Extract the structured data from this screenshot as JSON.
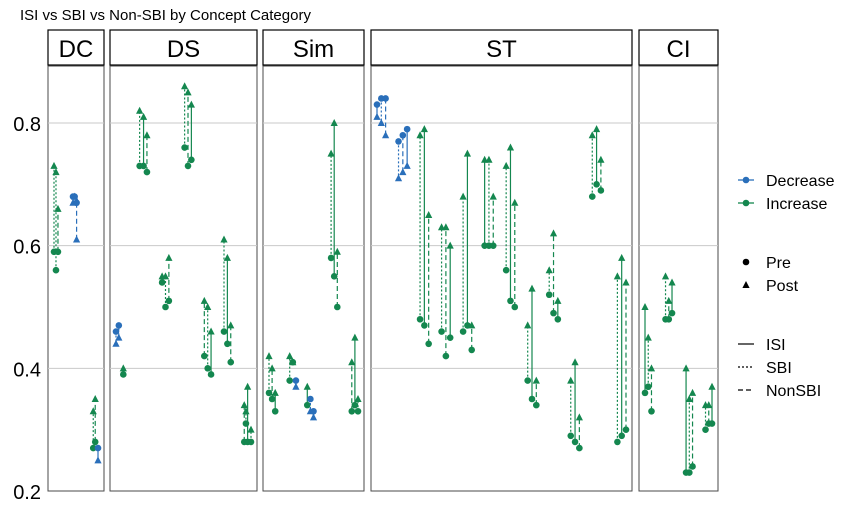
{
  "chart_data": {
    "type": "scatter",
    "title": "ISI vs SBI vs Non-SBI by Concept Category",
    "xlabel": "",
    "ylabel": "",
    "ylim": [
      0.2,
      0.9
    ],
    "yticks": [
      0.2,
      0.4,
      0.6,
      0.8
    ],
    "grid": true,
    "legend_placement": "right",
    "colors": {
      "Decrease": "#2a6fba",
      "Increase": "#14874f"
    },
    "legend": {
      "direction": {
        "entries": [
          "Decrease",
          "Increase"
        ]
      },
      "time": {
        "entries": [
          "Pre",
          "Post"
        ]
      },
      "method": {
        "entries": [
          "ISI",
          "SBI",
          "NonSBI"
        ]
      }
    },
    "facets": [
      {
        "name": "DC",
        "points": 4,
        "segments": [
          {
            "x": 1.1,
            "pre": 0.59,
            "post": 0.73,
            "method": "SBI",
            "direction": "Increase"
          },
          {
            "x": 1.6,
            "pre": 0.56,
            "post": 0.72,
            "method": "SBI",
            "direction": "Increase"
          },
          {
            "x": 2.1,
            "pre": 0.59,
            "post": 0.66,
            "method": "NonSBI",
            "direction": "Increase"
          },
          {
            "x": 5.9,
            "pre": 0.68,
            "post": 0.67,
            "method": "ISI",
            "direction": "Decrease"
          },
          {
            "x": 6.3,
            "pre": 0.68,
            "post": 0.68,
            "method": "SBI",
            "direction": "Decrease"
          },
          {
            "x": 6.8,
            "pre": 0.67,
            "post": 0.61,
            "method": "NonSBI",
            "direction": "Decrease"
          },
          {
            "x": 11.0,
            "pre": 0.27,
            "post": 0.33,
            "method": "SBI",
            "direction": "Increase"
          },
          {
            "x": 11.5,
            "pre": 0.28,
            "post": 0.35,
            "method": "NonSBI",
            "direction": "Increase"
          },
          {
            "x": 12.2,
            "pre": 0.27,
            "post": 0.25,
            "method": "ISI",
            "direction": "Decrease"
          }
        ]
      },
      {
        "name": "DS",
        "points": 6,
        "segments": [
          {
            "x": 1.2,
            "pre": 0.46,
            "post": 0.44,
            "method": "SBI",
            "direction": "Decrease"
          },
          {
            "x": 1.7,
            "pre": 0.47,
            "post": 0.45,
            "method": "NonSBI",
            "direction": "Decrease"
          },
          {
            "x": 2.5,
            "pre": 0.39,
            "post": 0.4,
            "method": "ISI",
            "direction": "Increase"
          },
          {
            "x": 5.4,
            "pre": 0.73,
            "post": 0.82,
            "method": "SBI",
            "direction": "Increase"
          },
          {
            "x": 6.1,
            "pre": 0.73,
            "post": 0.81,
            "method": "ISI",
            "direction": "Increase"
          },
          {
            "x": 6.7,
            "pre": 0.72,
            "post": 0.78,
            "method": "NonSBI",
            "direction": "Increase"
          },
          {
            "x": 9.4,
            "pre": 0.54,
            "post": 0.55,
            "method": "ISI",
            "direction": "Increase"
          },
          {
            "x": 10.0,
            "pre": 0.5,
            "post": 0.55,
            "method": "SBI",
            "direction": "Increase"
          },
          {
            "x": 10.6,
            "pre": 0.51,
            "post": 0.58,
            "method": "NonSBI",
            "direction": "Increase"
          },
          {
            "x": 13.4,
            "pre": 0.76,
            "post": 0.86,
            "method": "SBI",
            "direction": "Increase"
          },
          {
            "x": 14.0,
            "pre": 0.73,
            "post": 0.85,
            "method": "NonSBI",
            "direction": "Increase"
          },
          {
            "x": 14.6,
            "pre": 0.74,
            "post": 0.83,
            "method": "ISI",
            "direction": "Increase"
          },
          {
            "x": 16.9,
            "pre": 0.42,
            "post": 0.51,
            "method": "NonSBI",
            "direction": "Increase"
          },
          {
            "x": 17.5,
            "pre": 0.4,
            "post": 0.5,
            "method": "SBI",
            "direction": "Increase"
          },
          {
            "x": 18.1,
            "pre": 0.39,
            "post": 0.46,
            "method": "ISI",
            "direction": "Increase"
          },
          {
            "x": 20.4,
            "pre": 0.46,
            "post": 0.61,
            "method": "SBI",
            "direction": "Increase"
          },
          {
            "x": 21.0,
            "pre": 0.44,
            "post": 0.58,
            "method": "ISI",
            "direction": "Increase"
          },
          {
            "x": 21.6,
            "pre": 0.41,
            "post": 0.47,
            "method": "NonSBI",
            "direction": "Increase"
          },
          {
            "x": 24.0,
            "pre": 0.28,
            "post": 0.34,
            "method": "NonSBI",
            "direction": "Increase"
          },
          {
            "x": 24.6,
            "pre": 0.28,
            "post": 0.37,
            "method": "ISI",
            "direction": "Increase"
          },
          {
            "x": 25.2,
            "pre": 0.28,
            "post": 0.3,
            "method": "SBI",
            "direction": "Increase"
          },
          {
            "x": 24.3,
            "pre": 0.31,
            "post": 0.33,
            "method": "SBI",
            "direction": "Increase"
          }
        ]
      },
      {
        "name": "Sim",
        "points": 5,
        "segments": [
          {
            "x": 1.0,
            "pre": 0.36,
            "post": 0.42,
            "method": "SBI",
            "direction": "Increase"
          },
          {
            "x": 1.6,
            "pre": 0.35,
            "post": 0.4,
            "method": "NonSBI",
            "direction": "Increase"
          },
          {
            "x": 2.2,
            "pre": 0.33,
            "post": 0.36,
            "method": "ISI",
            "direction": "Increase"
          },
          {
            "x": 5.0,
            "pre": 0.38,
            "post": 0.42,
            "method": "SBI",
            "direction": "Increase"
          },
          {
            "x": 5.6,
            "pre": 0.41,
            "post": 0.41,
            "method": "NonSBI",
            "direction": "Increase"
          },
          {
            "x": 6.2,
            "pre": 0.38,
            "post": 0.37,
            "method": "ISI",
            "direction": "Decrease"
          },
          {
            "x": 8.4,
            "pre": 0.34,
            "post": 0.37,
            "method": "ISI",
            "direction": "Increase"
          },
          {
            "x": 9.0,
            "pre": 0.35,
            "post": 0.33,
            "method": "SBI",
            "direction": "Decrease"
          },
          {
            "x": 9.6,
            "pre": 0.33,
            "post": 0.32,
            "method": "NonSBI",
            "direction": "Decrease"
          },
          {
            "x": 13.0,
            "pre": 0.58,
            "post": 0.75,
            "method": "SBI",
            "direction": "Increase"
          },
          {
            "x": 13.6,
            "pre": 0.55,
            "post": 0.8,
            "method": "ISI",
            "direction": "Increase"
          },
          {
            "x": 14.2,
            "pre": 0.5,
            "post": 0.59,
            "method": "NonSBI",
            "direction": "Increase"
          },
          {
            "x": 17.0,
            "pre": 0.33,
            "post": 0.41,
            "method": "NonSBI",
            "direction": "Increase"
          },
          {
            "x": 17.6,
            "pre": 0.34,
            "post": 0.45,
            "method": "ISI",
            "direction": "Increase"
          },
          {
            "x": 18.2,
            "pre": 0.33,
            "post": 0.35,
            "method": "SBI",
            "direction": "Increase"
          }
        ]
      },
      {
        "name": "ST",
        "points": 14,
        "segments": [
          {
            "x": 1.0,
            "pre": 0.83,
            "post": 0.81,
            "method": "ISI",
            "direction": "Decrease"
          },
          {
            "x": 1.6,
            "pre": 0.84,
            "post": 0.8,
            "method": "SBI",
            "direction": "Decrease"
          },
          {
            "x": 2.2,
            "pre": 0.84,
            "post": 0.78,
            "method": "NonSBI",
            "direction": "Decrease"
          },
          {
            "x": 4.0,
            "pre": 0.77,
            "post": 0.71,
            "method": "SBI",
            "direction": "Decrease"
          },
          {
            "x": 4.6,
            "pre": 0.78,
            "post": 0.72,
            "method": "NonSBI",
            "direction": "Decrease"
          },
          {
            "x": 5.2,
            "pre": 0.79,
            "post": 0.73,
            "method": "ISI",
            "direction": "Decrease"
          },
          {
            "x": 7.0,
            "pre": 0.48,
            "post": 0.78,
            "method": "SBI",
            "direction": "Increase"
          },
          {
            "x": 7.6,
            "pre": 0.47,
            "post": 0.79,
            "method": "ISI",
            "direction": "Increase"
          },
          {
            "x": 8.2,
            "pre": 0.44,
            "post": 0.65,
            "method": "NonSBI",
            "direction": "Increase"
          },
          {
            "x": 10.0,
            "pre": 0.46,
            "post": 0.63,
            "method": "SBI",
            "direction": "Increase"
          },
          {
            "x": 10.6,
            "pre": 0.42,
            "post": 0.63,
            "method": "NonSBI",
            "direction": "Increase"
          },
          {
            "x": 11.2,
            "pre": 0.45,
            "post": 0.6,
            "method": "ISI",
            "direction": "Increase"
          },
          {
            "x": 13.0,
            "pre": 0.46,
            "post": 0.68,
            "method": "SBI",
            "direction": "Increase"
          },
          {
            "x": 13.6,
            "pre": 0.47,
            "post": 0.75,
            "method": "ISI",
            "direction": "Increase"
          },
          {
            "x": 14.2,
            "pre": 0.43,
            "post": 0.47,
            "method": "NonSBI",
            "direction": "Increase"
          },
          {
            "x": 16.0,
            "pre": 0.6,
            "post": 0.74,
            "method": "ISI",
            "direction": "Increase"
          },
          {
            "x": 16.6,
            "pre": 0.6,
            "post": 0.74,
            "method": "SBI",
            "direction": "Increase"
          },
          {
            "x": 17.2,
            "pre": 0.6,
            "post": 0.68,
            "method": "NonSBI",
            "direction": "Increase"
          },
          {
            "x": 19.0,
            "pre": 0.56,
            "post": 0.73,
            "method": "SBI",
            "direction": "Increase"
          },
          {
            "x": 19.6,
            "pre": 0.51,
            "post": 0.76,
            "method": "ISI",
            "direction": "Increase"
          },
          {
            "x": 20.2,
            "pre": 0.5,
            "post": 0.67,
            "method": "NonSBI",
            "direction": "Increase"
          },
          {
            "x": 22.0,
            "pre": 0.38,
            "post": 0.47,
            "method": "SBI",
            "direction": "Increase"
          },
          {
            "x": 22.6,
            "pre": 0.35,
            "post": 0.53,
            "method": "ISI",
            "direction": "Increase"
          },
          {
            "x": 23.2,
            "pre": 0.34,
            "post": 0.38,
            "method": "NonSBI",
            "direction": "Increase"
          },
          {
            "x": 25.0,
            "pre": 0.52,
            "post": 0.56,
            "method": "SBI",
            "direction": "Increase"
          },
          {
            "x": 25.6,
            "pre": 0.49,
            "post": 0.62,
            "method": "NonSBI",
            "direction": "Increase"
          },
          {
            "x": 26.2,
            "pre": 0.48,
            "post": 0.51,
            "method": "ISI",
            "direction": "Increase"
          },
          {
            "x": 28.0,
            "pre": 0.29,
            "post": 0.38,
            "method": "SBI",
            "direction": "Increase"
          },
          {
            "x": 28.6,
            "pre": 0.28,
            "post": 0.41,
            "method": "ISI",
            "direction": "Increase"
          },
          {
            "x": 29.2,
            "pre": 0.27,
            "post": 0.32,
            "method": "NonSBI",
            "direction": "Increase"
          },
          {
            "x": 31.0,
            "pre": 0.68,
            "post": 0.78,
            "method": "SBI",
            "direction": "Increase"
          },
          {
            "x": 31.6,
            "pre": 0.7,
            "post": 0.79,
            "method": "ISI",
            "direction": "Increase"
          },
          {
            "x": 32.2,
            "pre": 0.69,
            "post": 0.74,
            "method": "NonSBI",
            "direction": "Increase"
          },
          {
            "x": 34.5,
            "pre": 0.28,
            "post": 0.55,
            "method": "SBI",
            "direction": "Increase"
          },
          {
            "x": 35.1,
            "pre": 0.29,
            "post": 0.58,
            "method": "ISI",
            "direction": "Increase"
          },
          {
            "x": 35.7,
            "pre": 0.3,
            "post": 0.54,
            "method": "NonSBI",
            "direction": "Increase"
          }
        ]
      },
      {
        "name": "CI",
        "points": 5,
        "segments": [
          {
            "x": 1.0,
            "pre": 0.36,
            "post": 0.5,
            "method": "ISI",
            "direction": "Increase"
          },
          {
            "x": 1.6,
            "pre": 0.37,
            "post": 0.45,
            "method": "SBI",
            "direction": "Increase"
          },
          {
            "x": 2.2,
            "pre": 0.33,
            "post": 0.4,
            "method": "NonSBI",
            "direction": "Increase"
          },
          {
            "x": 4.8,
            "pre": 0.48,
            "post": 0.55,
            "method": "SBI",
            "direction": "Increase"
          },
          {
            "x": 5.4,
            "pre": 0.48,
            "post": 0.51,
            "method": "NonSBI",
            "direction": "Increase"
          },
          {
            "x": 6.0,
            "pre": 0.49,
            "post": 0.54,
            "method": "ISI",
            "direction": "Increase"
          },
          {
            "x": 8.6,
            "pre": 0.23,
            "post": 0.4,
            "method": "ISI",
            "direction": "Increase"
          },
          {
            "x": 9.2,
            "pre": 0.23,
            "post": 0.35,
            "method": "SBI",
            "direction": "Increase"
          },
          {
            "x": 9.8,
            "pre": 0.24,
            "post": 0.36,
            "method": "NonSBI",
            "direction": "Increase"
          },
          {
            "x": 12.2,
            "pre": 0.3,
            "post": 0.34,
            "method": "SBI",
            "direction": "Increase"
          },
          {
            "x": 12.8,
            "pre": 0.31,
            "post": 0.34,
            "method": "NonSBI",
            "direction": "Increase"
          },
          {
            "x": 13.4,
            "pre": 0.31,
            "post": 0.37,
            "method": "ISI",
            "direction": "Increase"
          }
        ]
      }
    ]
  }
}
